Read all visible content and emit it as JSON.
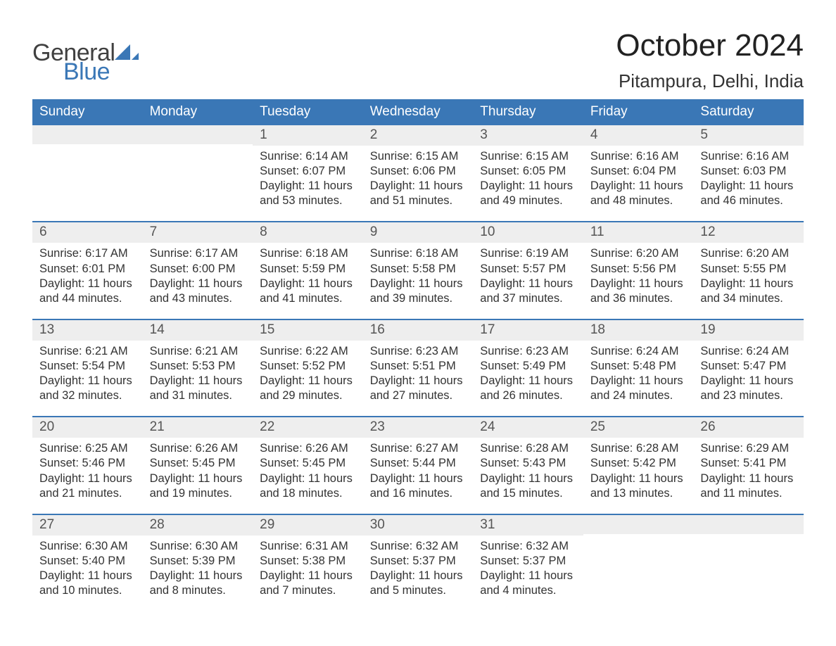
{
  "logo": {
    "general": "General",
    "blue": "Blue"
  },
  "title": "October 2024",
  "location": "Pitampura, Delhi, India",
  "colors": {
    "header_bg": "#3a77b6",
    "header_text": "#ffffff",
    "daynum_bg": "#eeeeee",
    "rule": "#3a77b6",
    "body_text": "#333333",
    "logo_gray": "#404040",
    "logo_blue": "#3a77b6"
  },
  "weekdays": [
    "Sunday",
    "Monday",
    "Tuesday",
    "Wednesday",
    "Thursday",
    "Friday",
    "Saturday"
  ],
  "weeks": [
    [
      {
        "n": "",
        "sunrise": "",
        "sunset": "",
        "daylight": ""
      },
      {
        "n": "",
        "sunrise": "",
        "sunset": "",
        "daylight": ""
      },
      {
        "n": "1",
        "sunrise": "6:14 AM",
        "sunset": "6:07 PM",
        "daylight": "11 hours and 53 minutes."
      },
      {
        "n": "2",
        "sunrise": "6:15 AM",
        "sunset": "6:06 PM",
        "daylight": "11 hours and 51 minutes."
      },
      {
        "n": "3",
        "sunrise": "6:15 AM",
        "sunset": "6:05 PM",
        "daylight": "11 hours and 49 minutes."
      },
      {
        "n": "4",
        "sunrise": "6:16 AM",
        "sunset": "6:04 PM",
        "daylight": "11 hours and 48 minutes."
      },
      {
        "n": "5",
        "sunrise": "6:16 AM",
        "sunset": "6:03 PM",
        "daylight": "11 hours and 46 minutes."
      }
    ],
    [
      {
        "n": "6",
        "sunrise": "6:17 AM",
        "sunset": "6:01 PM",
        "daylight": "11 hours and 44 minutes."
      },
      {
        "n": "7",
        "sunrise": "6:17 AM",
        "sunset": "6:00 PM",
        "daylight": "11 hours and 43 minutes."
      },
      {
        "n": "8",
        "sunrise": "6:18 AM",
        "sunset": "5:59 PM",
        "daylight": "11 hours and 41 minutes."
      },
      {
        "n": "9",
        "sunrise": "6:18 AM",
        "sunset": "5:58 PM",
        "daylight": "11 hours and 39 minutes."
      },
      {
        "n": "10",
        "sunrise": "6:19 AM",
        "sunset": "5:57 PM",
        "daylight": "11 hours and 37 minutes."
      },
      {
        "n": "11",
        "sunrise": "6:20 AM",
        "sunset": "5:56 PM",
        "daylight": "11 hours and 36 minutes."
      },
      {
        "n": "12",
        "sunrise": "6:20 AM",
        "sunset": "5:55 PM",
        "daylight": "11 hours and 34 minutes."
      }
    ],
    [
      {
        "n": "13",
        "sunrise": "6:21 AM",
        "sunset": "5:54 PM",
        "daylight": "11 hours and 32 minutes."
      },
      {
        "n": "14",
        "sunrise": "6:21 AM",
        "sunset": "5:53 PM",
        "daylight": "11 hours and 31 minutes."
      },
      {
        "n": "15",
        "sunrise": "6:22 AM",
        "sunset": "5:52 PM",
        "daylight": "11 hours and 29 minutes."
      },
      {
        "n": "16",
        "sunrise": "6:23 AM",
        "sunset": "5:51 PM",
        "daylight": "11 hours and 27 minutes."
      },
      {
        "n": "17",
        "sunrise": "6:23 AM",
        "sunset": "5:49 PM",
        "daylight": "11 hours and 26 minutes."
      },
      {
        "n": "18",
        "sunrise": "6:24 AM",
        "sunset": "5:48 PM",
        "daylight": "11 hours and 24 minutes."
      },
      {
        "n": "19",
        "sunrise": "6:24 AM",
        "sunset": "5:47 PM",
        "daylight": "11 hours and 23 minutes."
      }
    ],
    [
      {
        "n": "20",
        "sunrise": "6:25 AM",
        "sunset": "5:46 PM",
        "daylight": "11 hours and 21 minutes."
      },
      {
        "n": "21",
        "sunrise": "6:26 AM",
        "sunset": "5:45 PM",
        "daylight": "11 hours and 19 minutes."
      },
      {
        "n": "22",
        "sunrise": "6:26 AM",
        "sunset": "5:45 PM",
        "daylight": "11 hours and 18 minutes."
      },
      {
        "n": "23",
        "sunrise": "6:27 AM",
        "sunset": "5:44 PM",
        "daylight": "11 hours and 16 minutes."
      },
      {
        "n": "24",
        "sunrise": "6:28 AM",
        "sunset": "5:43 PM",
        "daylight": "11 hours and 15 minutes."
      },
      {
        "n": "25",
        "sunrise": "6:28 AM",
        "sunset": "5:42 PM",
        "daylight": "11 hours and 13 minutes."
      },
      {
        "n": "26",
        "sunrise": "6:29 AM",
        "sunset": "5:41 PM",
        "daylight": "11 hours and 11 minutes."
      }
    ],
    [
      {
        "n": "27",
        "sunrise": "6:30 AM",
        "sunset": "5:40 PM",
        "daylight": "11 hours and 10 minutes."
      },
      {
        "n": "28",
        "sunrise": "6:30 AM",
        "sunset": "5:39 PM",
        "daylight": "11 hours and 8 minutes."
      },
      {
        "n": "29",
        "sunrise": "6:31 AM",
        "sunset": "5:38 PM",
        "daylight": "11 hours and 7 minutes."
      },
      {
        "n": "30",
        "sunrise": "6:32 AM",
        "sunset": "5:37 PM",
        "daylight": "11 hours and 5 minutes."
      },
      {
        "n": "31",
        "sunrise": "6:32 AM",
        "sunset": "5:37 PM",
        "daylight": "11 hours and 4 minutes."
      },
      {
        "n": "",
        "sunrise": "",
        "sunset": "",
        "daylight": ""
      },
      {
        "n": "",
        "sunrise": "",
        "sunset": "",
        "daylight": ""
      }
    ]
  ],
  "labels": {
    "sunrise": "Sunrise: ",
    "sunset": "Sunset: ",
    "daylight": "Daylight: "
  }
}
